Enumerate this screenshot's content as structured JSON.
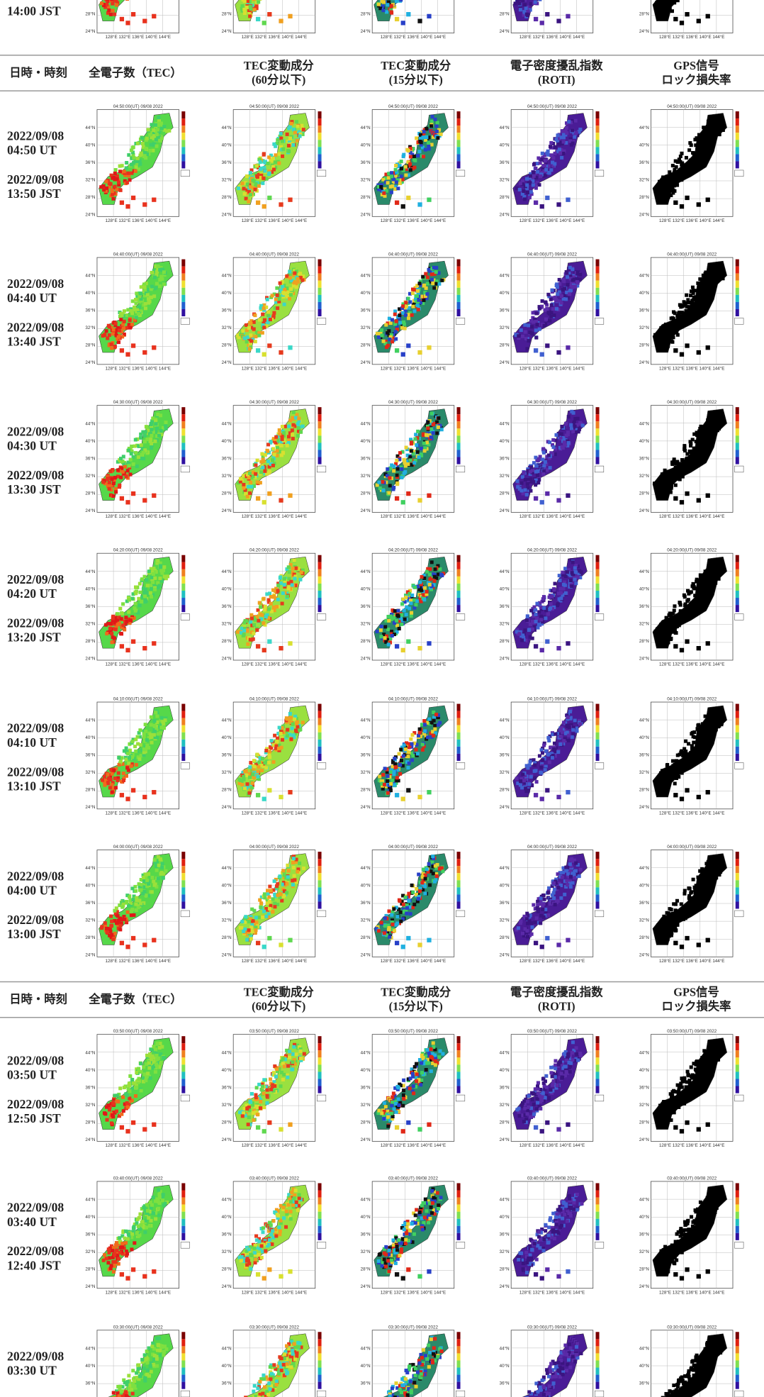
{
  "top_partial": {
    "jst": "14:00 JST"
  },
  "headers": [
    [
      "日時・時刻"
    ],
    [
      "全電子数（TEC）"
    ],
    [
      "TEC変動成分",
      "(60分以下)"
    ],
    [
      "TEC変動成分",
      "(15分以下)"
    ],
    [
      "電子密度擾乱指数",
      "(ROTI)"
    ],
    [
      "GPS信号",
      "ロック損失率"
    ]
  ],
  "rows": [
    {
      "date": "2022/09/08",
      "ut": "04:50 UT",
      "jst": "13:50 JST",
      "map_title": "04:50:00(UT) 09/08 2022"
    },
    {
      "date": "2022/09/08",
      "ut": "04:40 UT",
      "jst": "13:40 JST",
      "map_title": "04:40:00(UT) 09/08 2022"
    },
    {
      "date": "2022/09/08",
      "ut": "04:30 UT",
      "jst": "13:30 JST",
      "map_title": "04:30:00(UT) 09/08 2022"
    },
    {
      "date": "2022/09/08",
      "ut": "04:20 UT",
      "jst": "13:20 JST",
      "map_title": "04:20:00(UT) 09/08 2022"
    },
    {
      "date": "2022/09/08",
      "ut": "04:10 UT",
      "jst": "13:10 JST",
      "map_title": "04:10:00(UT) 09/08 2022"
    },
    {
      "date": "2022/09/08",
      "ut": "04:00 UT",
      "jst": "13:00 JST",
      "map_title": "04:00:00(UT) 09/08 2022"
    },
    {
      "date": "2022/09/08",
      "ut": "03:50 UT",
      "jst": "12:50 JST",
      "map_title": "03:50:00(UT) 09/08 2022"
    },
    {
      "date": "2022/09/08",
      "ut": "03:40 UT",
      "jst": "12:40 JST",
      "map_title": "03:40:00(UT) 09/08 2022"
    },
    {
      "date": "2022/09/08",
      "ut": "03:30 UT",
      "map_title": "03:30:00(UT) 09/08 2022"
    }
  ],
  "lat_labels": [
    "44°N",
    "40°N",
    "36°N",
    "32°N",
    "28°N",
    "24°N"
  ],
  "lon_labels": [
    "128°E",
    "132°E",
    "136°E",
    "140°E",
    "144°E"
  ]
}
